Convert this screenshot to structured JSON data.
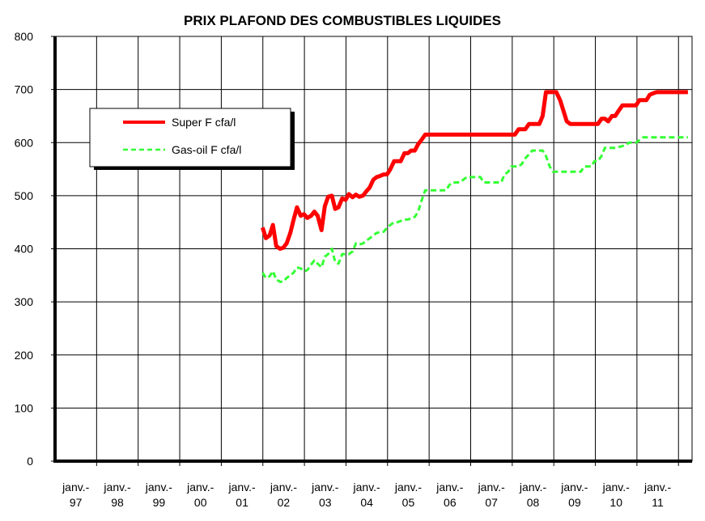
{
  "chart_data": {
    "type": "line",
    "title": "PRIX PLAFOND DES COMBUSTIBLES LIQUIDES",
    "xlabel": "",
    "ylabel": "",
    "ylim": [
      0,
      800
    ],
    "yticks": [
      0,
      100,
      200,
      300,
      400,
      500,
      600,
      700,
      800
    ],
    "xticks": [
      {
        "line1": "janv.-",
        "line2": "97"
      },
      {
        "line1": "janv.-",
        "line2": "98"
      },
      {
        "line1": "janv.-",
        "line2": "99"
      },
      {
        "line1": "janv.-",
        "line2": "00"
      },
      {
        "line1": "janv.-",
        "line2": "01"
      },
      {
        "line1": "janv.-",
        "line2": "02"
      },
      {
        "line1": "janv.-",
        "line2": "03"
      },
      {
        "line1": "janv.-",
        "line2": "04"
      },
      {
        "line1": "janv.-",
        "line2": "05"
      },
      {
        "line1": "janv.-",
        "line2": "06"
      },
      {
        "line1": "janv.-",
        "line2": "07"
      },
      {
        "line1": "janv.-",
        "line2": "08"
      },
      {
        "line1": "janv.-",
        "line2": "09"
      },
      {
        "line1": "janv.-",
        "line2": "10"
      },
      {
        "line1": "janv.-",
        "line2": "11"
      }
    ],
    "xlim": [
      1996.5,
      2011.85
    ],
    "grid": true,
    "legend_position": "top-left",
    "series": [
      {
        "name": "Super F cfa/l",
        "color": "#ff0000",
        "style": "solid",
        "points": [
          [
            2001.5,
            440
          ],
          [
            2001.58,
            420
          ],
          [
            2001.67,
            425
          ],
          [
            2001.75,
            445
          ],
          [
            2001.83,
            405
          ],
          [
            2001.92,
            400
          ],
          [
            2002.0,
            402
          ],
          [
            2002.08,
            410
          ],
          [
            2002.17,
            430
          ],
          [
            2002.25,
            455
          ],
          [
            2002.33,
            478
          ],
          [
            2002.42,
            462
          ],
          [
            2002.5,
            465
          ],
          [
            2002.58,
            458
          ],
          [
            2002.67,
            462
          ],
          [
            2002.75,
            470
          ],
          [
            2002.83,
            462
          ],
          [
            2002.92,
            435
          ],
          [
            2003.0,
            480
          ],
          [
            2003.08,
            498
          ],
          [
            2003.17,
            500
          ],
          [
            2003.25,
            475
          ],
          [
            2003.33,
            478
          ],
          [
            2003.42,
            495
          ],
          [
            2003.5,
            492
          ],
          [
            2003.58,
            503
          ],
          [
            2003.67,
            497
          ],
          [
            2003.75,
            502
          ],
          [
            2003.83,
            498
          ],
          [
            2003.92,
            500
          ],
          [
            2004.0,
            508
          ],
          [
            2004.08,
            515
          ],
          [
            2004.17,
            530
          ],
          [
            2004.25,
            535
          ],
          [
            2004.33,
            537
          ],
          [
            2004.42,
            540
          ],
          [
            2004.5,
            540
          ],
          [
            2004.58,
            550
          ],
          [
            2004.67,
            565
          ],
          [
            2004.75,
            565
          ],
          [
            2004.83,
            565
          ],
          [
            2004.92,
            580
          ],
          [
            2005.0,
            580
          ],
          [
            2005.08,
            585
          ],
          [
            2005.17,
            585
          ],
          [
            2005.25,
            597
          ],
          [
            2005.33,
            605
          ],
          [
            2005.42,
            615
          ],
          [
            2005.5,
            615
          ],
          [
            2006.0,
            615
          ],
          [
            2006.5,
            615
          ],
          [
            2007.0,
            615
          ],
          [
            2007.5,
            615
          ],
          [
            2007.58,
            615
          ],
          [
            2007.67,
            625
          ],
          [
            2007.75,
            625
          ],
          [
            2007.83,
            625
          ],
          [
            2007.92,
            635
          ],
          [
            2008.0,
            635
          ],
          [
            2008.17,
            635
          ],
          [
            2008.25,
            650
          ],
          [
            2008.33,
            695
          ],
          [
            2008.42,
            695
          ],
          [
            2008.58,
            695
          ],
          [
            2008.67,
            680
          ],
          [
            2008.75,
            660
          ],
          [
            2008.83,
            640
          ],
          [
            2008.92,
            635
          ],
          [
            2009.0,
            635
          ],
          [
            2009.5,
            635
          ],
          [
            2009.58,
            635
          ],
          [
            2009.67,
            645
          ],
          [
            2009.75,
            645
          ],
          [
            2009.83,
            640
          ],
          [
            2009.92,
            650
          ],
          [
            2010.0,
            650
          ],
          [
            2010.08,
            660
          ],
          [
            2010.17,
            670
          ],
          [
            2010.33,
            670
          ],
          [
            2010.5,
            670
          ],
          [
            2010.58,
            680
          ],
          [
            2010.75,
            680
          ],
          [
            2010.83,
            690
          ],
          [
            2010.92,
            693
          ],
          [
            2011.0,
            695
          ],
          [
            2011.33,
            695
          ],
          [
            2011.75,
            695
          ]
        ]
      },
      {
        "name": "Gas-oil F cfa/l",
        "color": "#33ff33",
        "style": "dashed",
        "points": [
          [
            2001.5,
            355
          ],
          [
            2001.58,
            345
          ],
          [
            2001.67,
            348
          ],
          [
            2001.75,
            358
          ],
          [
            2001.83,
            342
          ],
          [
            2001.92,
            338
          ],
          [
            2002.0,
            338
          ],
          [
            2002.08,
            345
          ],
          [
            2002.17,
            350
          ],
          [
            2002.25,
            355
          ],
          [
            2002.33,
            365
          ],
          [
            2002.42,
            363
          ],
          [
            2002.5,
            358
          ],
          [
            2002.58,
            360
          ],
          [
            2002.67,
            370
          ],
          [
            2002.75,
            378
          ],
          [
            2002.83,
            372
          ],
          [
            2002.92,
            365
          ],
          [
            2003.0,
            385
          ],
          [
            2003.08,
            390
          ],
          [
            2003.17,
            400
          ],
          [
            2003.25,
            375
          ],
          [
            2003.33,
            372
          ],
          [
            2003.42,
            390
          ],
          [
            2003.5,
            390
          ],
          [
            2003.58,
            390
          ],
          [
            2003.67,
            395
          ],
          [
            2003.75,
            410
          ],
          [
            2003.83,
            408
          ],
          [
            2003.92,
            410
          ],
          [
            2004.0,
            415
          ],
          [
            2004.17,
            425
          ],
          [
            2004.25,
            430
          ],
          [
            2004.42,
            432
          ],
          [
            2004.5,
            440
          ],
          [
            2004.58,
            445
          ],
          [
            2004.67,
            450
          ],
          [
            2004.75,
            450
          ],
          [
            2004.92,
            455
          ],
          [
            2005.0,
            455
          ],
          [
            2005.17,
            460
          ],
          [
            2005.25,
            470
          ],
          [
            2005.33,
            490
          ],
          [
            2005.42,
            510
          ],
          [
            2005.5,
            510
          ],
          [
            2005.92,
            510
          ],
          [
            2006.0,
            520
          ],
          [
            2006.08,
            525
          ],
          [
            2006.25,
            525
          ],
          [
            2006.42,
            535
          ],
          [
            2006.75,
            535
          ],
          [
            2006.83,
            525
          ],
          [
            2007.0,
            525
          ],
          [
            2007.25,
            525
          ],
          [
            2007.33,
            540
          ],
          [
            2007.42,
            545
          ],
          [
            2007.5,
            555
          ],
          [
            2007.67,
            555
          ],
          [
            2007.75,
            560
          ],
          [
            2007.83,
            570
          ],
          [
            2008.0,
            585
          ],
          [
            2008.25,
            585
          ],
          [
            2008.33,
            575
          ],
          [
            2008.42,
            555
          ],
          [
            2008.5,
            545
          ],
          [
            2008.67,
            545
          ],
          [
            2009.0,
            545
          ],
          [
            2009.17,
            545
          ],
          [
            2009.25,
            555
          ],
          [
            2009.42,
            555
          ],
          [
            2009.5,
            565
          ],
          [
            2009.58,
            565
          ],
          [
            2009.67,
            575
          ],
          [
            2009.75,
            590
          ],
          [
            2010.0,
            590
          ],
          [
            2010.25,
            595
          ],
          [
            2010.33,
            600
          ],
          [
            2010.42,
            600
          ],
          [
            2010.5,
            600
          ],
          [
            2010.67,
            610
          ],
          [
            2011.0,
            610
          ],
          [
            2011.33,
            610
          ],
          [
            2011.75,
            610
          ]
        ]
      }
    ]
  }
}
